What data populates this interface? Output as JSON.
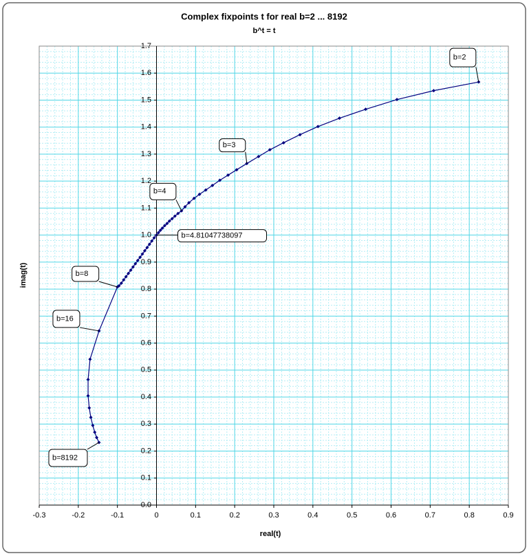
{
  "chart_data": {
    "type": "scatter",
    "title": "Complex fixpoints t for real b=2 ... 8192",
    "subtitle": "b^t = t",
    "x_label": "real(t)",
    "y_label": "imag(t)",
    "xlim": [
      -0.3,
      0.9
    ],
    "ylim": [
      0,
      1.7
    ],
    "xticks": [
      -0.3,
      -0.2,
      -0.1,
      0,
      0.1,
      0.2,
      0.3,
      0.4,
      0.5,
      0.6,
      0.7,
      0.8,
      0.9
    ],
    "yticks": [
      {
        "value": 0,
        "label": "0.0"
      },
      0.1,
      0.2,
      0.3,
      0.4,
      0.5,
      0.6,
      0.7,
      0.8,
      0.9,
      {
        "value": 1,
        "label": "1.0"
      },
      1.1,
      1.2,
      1.3,
      1.4,
      1.5,
      1.6,
      1.7
    ],
    "grid": true,
    "series": [
      {
        "color": "#000080",
        "x": [
          0.824,
          0.709,
          0.615,
          0.535,
          0.468,
          0.413,
          0.367,
          0.325,
          0.29,
          0.261,
          0.231,
          0.205,
          0.183,
          0.162,
          0.143,
          0.126,
          0.11,
          0.096,
          0.083,
          0.073,
          0.064,
          0.055,
          0.047,
          0.04,
          0.033,
          0.027,
          0.021,
          0.015,
          0.01,
          0.005,
          0.0,
          -0.006,
          -0.012,
          -0.018,
          -0.024,
          -0.03,
          -0.036,
          -0.042,
          -0.048,
          -0.054,
          -0.06,
          -0.066,
          -0.072,
          -0.078,
          -0.084,
          -0.09,
          -0.096,
          -0.1,
          -0.147,
          -0.17,
          -0.175,
          -0.175,
          -0.172,
          -0.168,
          -0.163,
          -0.158,
          -0.153,
          -0.147
        ],
        "y": [
          1.567,
          1.535,
          1.502,
          1.466,
          1.433,
          1.402,
          1.372,
          1.342,
          1.316,
          1.291,
          1.265,
          1.242,
          1.222,
          1.203,
          1.184,
          1.167,
          1.151,
          1.136,
          1.12,
          1.105,
          1.09,
          1.08,
          1.07,
          1.061,
          1.052,
          1.043,
          1.035,
          1.026,
          1.018,
          1.009,
          1.0,
          0.99,
          0.978,
          0.966,
          0.954,
          0.942,
          0.93,
          0.918,
          0.906,
          0.894,
          0.882,
          0.87,
          0.858,
          0.846,
          0.834,
          0.822,
          0.812,
          0.808,
          0.645,
          0.54,
          0.465,
          0.405,
          0.36,
          0.325,
          0.295,
          0.27,
          0.25,
          0.232
        ]
      }
    ],
    "annotations": [
      {
        "text": "b=2",
        "x": 0.824,
        "y": 1.567
      },
      {
        "text": "b=3",
        "x": 0.231,
        "y": 1.265
      },
      {
        "text": "b=4",
        "x": 0.064,
        "y": 1.09
      },
      {
        "text": "b=4.81047738097",
        "x": 0.0,
        "y": 1.0
      },
      {
        "text": "b=8",
        "x": -0.1,
        "y": 0.808
      },
      {
        "text": "b=16",
        "x": -0.147,
        "y": 0.645
      },
      {
        "text": "b=8192",
        "x": -0.147,
        "y": 0.232
      }
    ]
  }
}
